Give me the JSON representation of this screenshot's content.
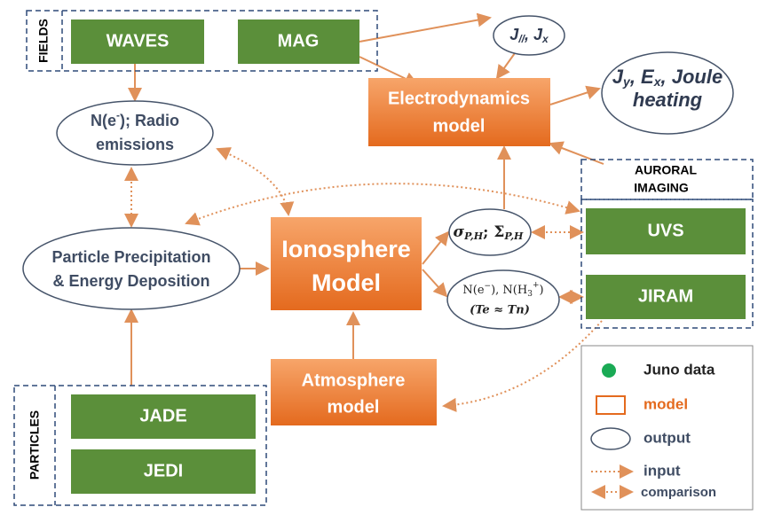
{
  "fields": {
    "label": "FIELDS",
    "waves": "WAVES",
    "mag": "MAG"
  },
  "currents": [
    "J",
    "//",
    ", J",
    "x"
  ],
  "outputs_top": {
    "line1": [
      "J",
      "y",
      ", E",
      "x",
      ", Joule"
    ],
    "line2": "heating"
  },
  "electrodynamics": {
    "line1": "Electrodynamics",
    "line2": "model"
  },
  "radio": {
    "line1": [
      "N(e",
      "-",
      "); Radio"
    ],
    "line2": "emissions"
  },
  "auroral_imaging": {
    "line1": "AURORAL",
    "line2": "IMAGING",
    "uvs": "UVS",
    "jiram": "JIRAM"
  },
  "conductance": [
    "σ",
    "P,H",
    "; Σ",
    "P,H"
  ],
  "density": {
    "line1": [
      "N(e",
      "−",
      "), N(H",
      "3",
      "+",
      ")"
    ],
    "line2": "(Te ≈ Tn)"
  },
  "ionosphere": {
    "line1": "Ionosphere",
    "line2": "Model"
  },
  "precipitation": {
    "line1": "Particle Precipitation",
    "line2": "& Energy Deposition"
  },
  "atmosphere": {
    "line1": "Atmosphere",
    "line2": "model"
  },
  "particles": {
    "label": "PARTICLES",
    "jade": "JADE",
    "jedi": "JEDI"
  },
  "legend": {
    "juno_data": "Juno data",
    "model": "model",
    "output": "output",
    "input": "input",
    "comparison": "comparison"
  }
}
